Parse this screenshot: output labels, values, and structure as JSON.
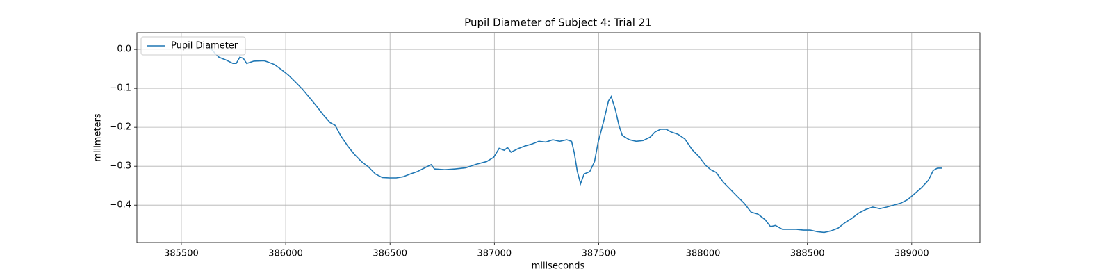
{
  "chart_data": {
    "type": "line",
    "title": "Pupil Diameter of Subject 4: Trial 21",
    "x_label": "miliseconds",
    "y_label": "milimeters",
    "xlim": [
      385287,
      389327
    ],
    "ylim": [
      -0.496,
      0.043
    ],
    "xticks": [
      385500,
      386000,
      386500,
      387000,
      387500,
      388000,
      388500,
      389000
    ],
    "yticks": [
      {
        "value": 0,
        "label": "0.0"
      },
      {
        "value": -0.1,
        "label": "−0.1"
      },
      {
        "value": -0.2,
        "label": "−0.2"
      },
      {
        "value": -0.3,
        "label": "−0.3"
      },
      {
        "value": -0.4,
        "label": "−0.4"
      }
    ],
    "grid": true,
    "legend": "upper left",
    "x": [
      385630,
      385663,
      385680,
      385713,
      385747,
      385763,
      385780,
      385797,
      385813,
      385847,
      385897,
      385913,
      385947,
      385980,
      386013,
      386047,
      386080,
      386113,
      386147,
      386180,
      386213,
      386237,
      386263,
      386297,
      386330,
      386363,
      386397,
      386430,
      386463,
      386497,
      386530,
      386563,
      386597,
      386630,
      386663,
      386697,
      386713,
      386763,
      386813,
      386863,
      386913,
      386963,
      386997,
      387023,
      387047,
      387063,
      387080,
      387113,
      387147,
      387180,
      387213,
      387247,
      387280,
      387313,
      387347,
      387370,
      387383,
      387397,
      387413,
      387430,
      387457,
      387480,
      387497,
      387523,
      387547,
      387560,
      387580,
      387597,
      387613,
      387647,
      387680,
      387713,
      387747,
      387770,
      387797,
      387823,
      387847,
      387880,
      387913,
      387947,
      387980,
      388013,
      388037,
      388063,
      388097,
      388130,
      388163,
      388197,
      388230,
      388263,
      388297,
      388323,
      388347,
      388380,
      388413,
      388447,
      388480,
      388513,
      388547,
      388580,
      388613,
      388647,
      388680,
      388713,
      388747,
      388780,
      388813,
      388847,
      388880,
      388913,
      388947,
      388980,
      389013,
      389047,
      389080,
      389103,
      389123,
      389147
    ],
    "series": [
      {
        "name": "Pupil Diameter",
        "color": "#1f77b4",
        "values": [
          0.009,
          -0.011,
          -0.02,
          -0.027,
          -0.036,
          -0.036,
          -0.02,
          -0.023,
          -0.036,
          -0.03,
          -0.029,
          -0.032,
          -0.039,
          -0.052,
          -0.066,
          -0.084,
          -0.102,
          -0.123,
          -0.145,
          -0.168,
          -0.188,
          -0.195,
          -0.221,
          -0.248,
          -0.27,
          -0.288,
          -0.302,
          -0.32,
          -0.329,
          -0.33,
          -0.33,
          -0.327,
          -0.32,
          -0.314,
          -0.305,
          -0.296,
          -0.307,
          -0.309,
          -0.307,
          -0.304,
          -0.295,
          -0.288,
          -0.277,
          -0.254,
          -0.259,
          -0.252,
          -0.264,
          -0.255,
          -0.248,
          -0.243,
          -0.236,
          -0.238,
          -0.232,
          -0.236,
          -0.232,
          -0.236,
          -0.266,
          -0.312,
          -0.345,
          -0.32,
          -0.314,
          -0.288,
          -0.239,
          -0.186,
          -0.132,
          -0.121,
          -0.155,
          -0.195,
          -0.221,
          -0.232,
          -0.236,
          -0.234,
          -0.225,
          -0.212,
          -0.205,
          -0.205,
          -0.212,
          -0.218,
          -0.23,
          -0.257,
          -0.275,
          -0.298,
          -0.309,
          -0.316,
          -0.341,
          -0.359,
          -0.377,
          -0.395,
          -0.418,
          -0.423,
          -0.437,
          -0.455,
          -0.452,
          -0.462,
          -0.462,
          -0.462,
          -0.464,
          -0.464,
          -0.468,
          -0.47,
          -0.466,
          -0.459,
          -0.445,
          -0.434,
          -0.42,
          -0.411,
          -0.405,
          -0.409,
          -0.405,
          -0.4,
          -0.395,
          -0.386,
          -0.371,
          -0.355,
          -0.336,
          -0.311,
          -0.305,
          -0.305
        ]
      }
    ]
  }
}
